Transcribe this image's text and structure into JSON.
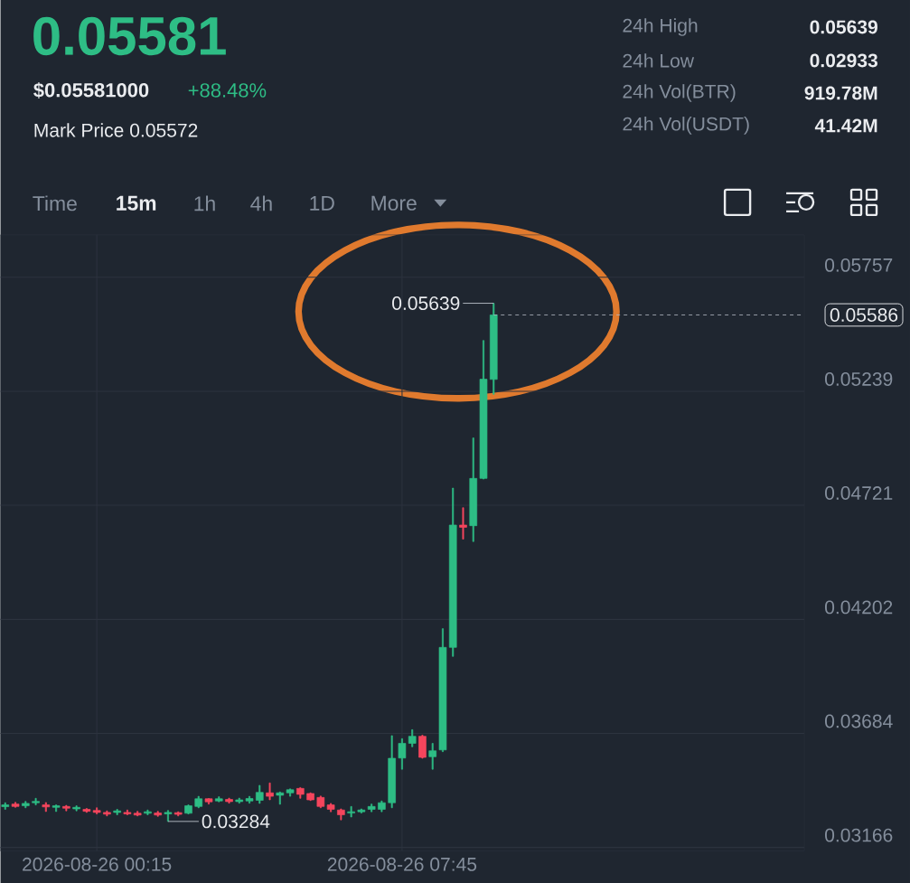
{
  "chart_data": {
    "type": "candlestick",
    "title": "0.05581",
    "subtitle": "$0.05581000",
    "annotations": [
      "+88.48%",
      "Mark Price 0.05572",
      "24h High",
      "0.05639",
      "24h Low",
      "0.02933",
      "24h Vol(BTR)",
      "919.78M",
      "24h Vol(USDT)",
      "41.42M",
      "Time",
      "15m",
      "1h",
      "4h",
      "1D",
      "More",
      {
        "text": "0.05639",
        "x": "2026-08-26T10:00",
        "y": 0.05639
      },
      {
        "text": "0.03284",
        "x": "2026-08-26T02:00",
        "y": 0.03284
      }
    ],
    "x": [
      "2026-08-25T22:00",
      "2026-08-25T22:15",
      "2026-08-25T22:30",
      "2026-08-25T22:45",
      "2026-08-25T23:00",
      "2026-08-25T23:15",
      "2026-08-25T23:30",
      "2026-08-25T23:45",
      "2026-08-26T00:00",
      "2026-08-26T00:15",
      "2026-08-26T00:30",
      "2026-08-26T00:45",
      "2026-08-26T01:00",
      "2026-08-26T01:15",
      "2026-08-26T01:30",
      "2026-08-26T01:45",
      "2026-08-26T02:00",
      "2026-08-26T02:15",
      "2026-08-26T02:30",
      "2026-08-26T02:45",
      "2026-08-26T03:00",
      "2026-08-26T03:15",
      "2026-08-26T03:30",
      "2026-08-26T03:45",
      "2026-08-26T04:00",
      "2026-08-26T04:15",
      "2026-08-26T04:30",
      "2026-08-26T04:45",
      "2026-08-26T05:00",
      "2026-08-26T05:15",
      "2026-08-26T05:30",
      "2026-08-26T05:45",
      "2026-08-26T06:00",
      "2026-08-26T06:15",
      "2026-08-26T06:30",
      "2026-08-26T06:45",
      "2026-08-26T07:00",
      "2026-08-26T07:15",
      "2026-08-26T07:30",
      "2026-08-26T07:45",
      "2026-08-26T08:00",
      "2026-08-26T08:15",
      "2026-08-26T08:30",
      "2026-08-26T08:45",
      "2026-08-26T09:00",
      "2026-08-26T09:15",
      "2026-08-26T09:30",
      "2026-08-26T09:45",
      "2026-08-26T10:00"
    ],
    "ohlc": [
      [
        0.03351,
        0.03369,
        0.03339,
        0.03359
      ],
      [
        0.03363,
        0.03371,
        0.03348,
        0.03352
      ],
      [
        0.03355,
        0.03375,
        0.03346,
        0.03366
      ],
      [
        0.03369,
        0.03389,
        0.03359,
        0.03375
      ],
      [
        0.03359,
        0.0337,
        0.03329,
        0.0335
      ],
      [
        0.03348,
        0.03359,
        0.03329,
        0.03355
      ],
      [
        0.03352,
        0.03357,
        0.03332,
        0.03344
      ],
      [
        0.03341,
        0.03355,
        0.03332,
        0.03348
      ],
      [
        0.03339,
        0.03343,
        0.03325,
        0.0333
      ],
      [
        0.03334,
        0.03346,
        0.03318,
        0.03325
      ],
      [
        0.03325,
        0.03332,
        0.03309,
        0.03317
      ],
      [
        0.03325,
        0.03339,
        0.03314,
        0.03332
      ],
      [
        0.03325,
        0.03336,
        0.03314,
        0.03318
      ],
      [
        0.03321,
        0.0333,
        0.03309,
        0.03313
      ],
      [
        0.03321,
        0.03336,
        0.03314,
        0.03328
      ],
      [
        0.03322,
        0.0333,
        0.03307,
        0.03313
      ],
      [
        0.03318,
        0.03334,
        0.03284,
        0.03325
      ],
      [
        0.03324,
        0.03328,
        0.03309,
        0.03316
      ],
      [
        0.03321,
        0.03359,
        0.03318,
        0.03355
      ],
      [
        0.03352,
        0.03398,
        0.03346,
        0.03387
      ],
      [
        0.03387,
        0.03388,
        0.03363,
        0.03373
      ],
      [
        0.03377,
        0.03396,
        0.03373,
        0.03387
      ],
      [
        0.03384,
        0.0339,
        0.03367,
        0.03374
      ],
      [
        0.03374,
        0.0339,
        0.03367,
        0.03382
      ],
      [
        0.03377,
        0.03398,
        0.03367,
        0.03388
      ],
      [
        0.0338,
        0.03448,
        0.03366,
        0.03416
      ],
      [
        0.03414,
        0.03459,
        0.03382,
        0.03398
      ],
      [
        0.03403,
        0.03418,
        0.03362,
        0.03414
      ],
      [
        0.03414,
        0.03432,
        0.03398,
        0.03428
      ],
      [
        0.03434,
        0.03438,
        0.03389,
        0.03407
      ],
      [
        0.03411,
        0.03414,
        0.03379,
        0.03382
      ],
      [
        0.03393,
        0.03399,
        0.03346,
        0.03352
      ],
      [
        0.03359,
        0.03366,
        0.03328,
        0.03339
      ],
      [
        0.03336,
        0.03341,
        0.03291,
        0.03314
      ],
      [
        0.03322,
        0.03352,
        0.03304,
        0.03328
      ],
      [
        0.03328,
        0.03341,
        0.03322,
        0.03336
      ],
      [
        0.03339,
        0.03363,
        0.03328,
        0.03352
      ],
      [
        0.03339,
        0.03377,
        0.03328,
        0.03369
      ],
      [
        0.03369,
        0.03674,
        0.03346,
        0.03571
      ],
      [
        0.03572,
        0.0366,
        0.03521,
        0.03639
      ],
      [
        0.03639,
        0.03701,
        0.03623,
        0.03671
      ],
      [
        0.03671,
        0.03676,
        0.03571,
        0.03575
      ],
      [
        0.03578,
        0.03639,
        0.03521,
        0.03605
      ],
      [
        0.03609,
        0.0416,
        0.03601,
        0.04075
      ],
      [
        0.04075,
        0.04799,
        0.04034,
        0.04631
      ],
      [
        0.04631,
        0.0471,
        0.04567,
        0.04621
      ],
      [
        0.04628,
        0.05027,
        0.04556,
        0.04843
      ],
      [
        0.04843,
        0.0547,
        0.0484,
        0.05294
      ],
      [
        0.05293,
        0.05639,
        0.05225,
        0.05586
      ]
    ],
    "colors": [
      "#2ebd85",
      "#f6465d",
      "#2ebd85",
      "#2ebd85",
      "#f6465d",
      "#2ebd85",
      "#f6465d",
      "#2ebd85",
      "#f6465d",
      "#f6465d",
      "#f6465d",
      "#2ebd85",
      "#f6465d",
      "#f6465d",
      "#2ebd85",
      "#f6465d",
      "#2ebd85",
      "#f6465d",
      "#2ebd85",
      "#2ebd85",
      "#f6465d",
      "#2ebd85",
      "#f6465d",
      "#2ebd85",
      "#2ebd85",
      "#2ebd85",
      "#f6465d",
      "#2ebd85",
      "#2ebd85",
      "#f6465d",
      "#f6465d",
      "#f6465d",
      "#f6465d",
      "#f6465d",
      "#2ebd85",
      "#2ebd85",
      "#2ebd85",
      "#2ebd85",
      "#2ebd85",
      "#2ebd85",
      "#2ebd85",
      "#f6465d",
      "#2ebd85",
      "#2ebd85",
      "#2ebd85",
      "#f6465d",
      "#2ebd85",
      "#2ebd85",
      "#2ebd85"
    ],
    "xlim": [
      "2026-08-25T21:53",
      "2026-08-26T17:38"
    ],
    "xticks": [
      {
        "value": "2026-08-26T00:15",
        "label": "2026-08-26 00:15"
      },
      {
        "value": "2026-08-26T07:45",
        "label": "2026-08-26 07:45"
      }
    ],
    "ylim": [
      0.0315,
      0.0595
    ],
    "yticks": [
      0.03166,
      0.03684,
      0.04202,
      0.04721,
      0.05239,
      0.05757
    ],
    "grid": true,
    "ref_lines": [
      {
        "axis": "y",
        "value": 0.05586,
        "label": "0.05586",
        "line_style": "dashed",
        "color": "#b7bdc6"
      }
    ]
  }
}
